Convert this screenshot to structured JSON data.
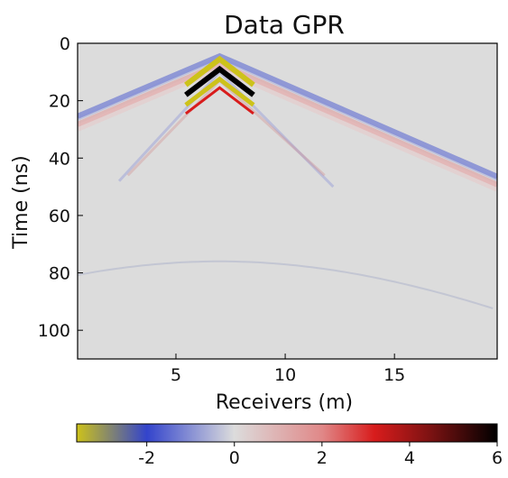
{
  "chart_data": {
    "type": "heatmap",
    "title": "Data GPR",
    "xlabel": "Receivers (m)",
    "ylabel": "Time (ns)",
    "xlim": [
      0.5,
      19.7
    ],
    "ylim": [
      110,
      0
    ],
    "xticks": [
      5,
      10,
      15
    ],
    "xtick_labels": [
      "5",
      "10",
      "15"
    ],
    "yticks": [
      0,
      20,
      40,
      60,
      80,
      100
    ],
    "ytick_labels": [
      "0",
      "20",
      "40",
      "60",
      "80",
      "100"
    ],
    "grid": false,
    "background_value": 0,
    "source_position_m": 7.0,
    "features": [
      {
        "name": "direct wave apex",
        "x": 7.0,
        "t": 6,
        "peak_value": 6
      },
      {
        "name": "left airwave edge",
        "x": 0.5,
        "t": 27,
        "value_sign": "negative"
      },
      {
        "name": "right airwave edge",
        "x": 19.7,
        "t": 48,
        "value_sign": "positive"
      },
      {
        "name": "reflection hyperbola apex",
        "x": 7.0,
        "t": 76,
        "value_sign": "weak negative"
      }
    ],
    "colorbar": {
      "orientation": "horizontal",
      "placement": "bottom",
      "vmin": -3.6,
      "vmax": 6.0,
      "ticks": [
        -2,
        0,
        2,
        4,
        6
      ],
      "tick_labels": [
        "-2",
        "0",
        "2",
        "4",
        "6"
      ],
      "colormap_stops": [
        {
          "v": -3.6,
          "color": "#cdc21a"
        },
        {
          "v": -2.0,
          "color": "#3344cc"
        },
        {
          "v": 0.0,
          "color": "#dcdcdc"
        },
        {
          "v": 2.0,
          "color": "#e08888"
        },
        {
          "v": 3.2,
          "color": "#d81c1c"
        },
        {
          "v": 4.5,
          "color": "#7a1212"
        },
        {
          "v": 6.0,
          "color": "#000000"
        }
      ]
    }
  }
}
